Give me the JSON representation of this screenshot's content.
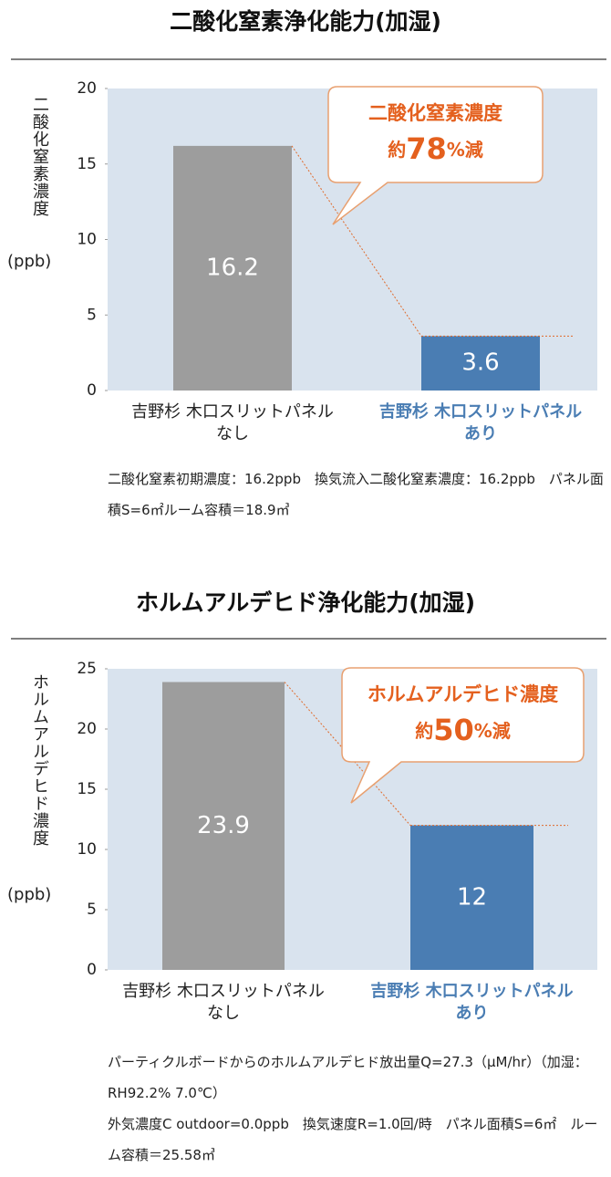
{
  "chart_data": [
    {
      "type": "bar",
      "title": "二酸化窒素浄化能力(加湿)",
      "y_label": "二酸化窒素濃度",
      "y_unit": "(ppb)",
      "categories": [
        "吉野杉 木口スリットパネル\nなし",
        "吉野杉 木口スリットパネル\nあり"
      ],
      "values": [
        16.2,
        3.6
      ],
      "colors": [
        "#9d9d9d",
        "#4a7db3"
      ],
      "category_colors": [
        "#222222",
        "#4a7db3"
      ],
      "ylim": [
        0,
        20
      ],
      "yticks": [
        0,
        5,
        10,
        15,
        20
      ],
      "callout": {
        "line1": "二酸化窒素濃度",
        "prefix": "約",
        "number": "78",
        "suffix": "%減"
      },
      "note": "二酸化窒素初期濃度：16.2ppb　換気流入二酸化窒素濃度：16.2ppb　パネル面積S=6㎡ルーム容積＝18.9㎥"
    },
    {
      "type": "bar",
      "title": "ホルムアルデヒド浄化能力(加湿)",
      "y_label": "ホルムアルデヒド濃度",
      "y_unit": "(ppb)",
      "categories": [
        "吉野杉 木口スリットパネル\nなし",
        "吉野杉 木口スリットパネル\nあり"
      ],
      "values": [
        23.9,
        12
      ],
      "colors": [
        "#9d9d9d",
        "#4a7db3"
      ],
      "category_colors": [
        "#222222",
        "#4a7db3"
      ],
      "ylim": [
        0,
        25
      ],
      "yticks": [
        0,
        5,
        10,
        15,
        20,
        25
      ],
      "callout": {
        "line1": "ホルムアルデヒド濃度",
        "prefix": "約",
        "number": "50",
        "suffix": "%減"
      },
      "note": "パーティクルボードからのホルムアルデヒド放出量Q=27.3（μM/hr）（加湿：RH92.2% 7.0℃）\n外気濃度C outdoor=0.0ppb　換気速度R=1.0回/時　パネル面積S=6㎡　ルーム容積＝25.58㎥"
    }
  ]
}
